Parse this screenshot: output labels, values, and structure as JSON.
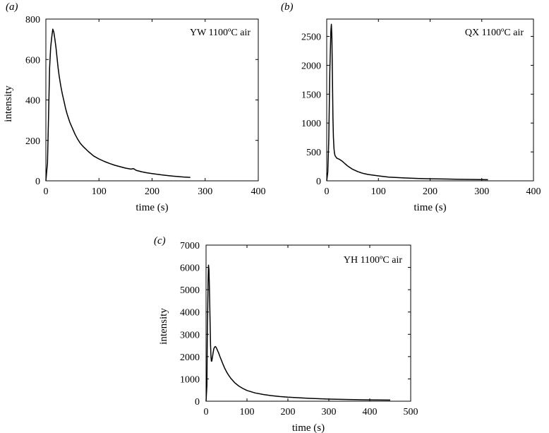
{
  "chart_data": [
    {
      "type": "line",
      "panel_label": "(a)",
      "annotation": "YW 1100ºC air",
      "xlabel": "time (s)",
      "ylabel": "intensity",
      "xlim": [
        0,
        400
      ],
      "ylim": [
        0,
        800
      ],
      "xticks": [
        0,
        100,
        200,
        300,
        400
      ],
      "yticks": [
        0,
        200,
        400,
        600,
        800
      ],
      "series": [
        {
          "x": [
            0,
            3,
            5,
            7,
            9,
            11,
            13,
            15,
            17,
            19,
            21,
            23,
            25,
            28,
            31,
            34,
            37,
            40,
            45,
            50,
            55,
            60,
            65,
            70,
            80,
            90,
            100,
            110,
            120,
            130,
            140,
            150,
            160,
            165,
            170,
            180,
            190,
            200,
            210,
            220,
            230,
            240,
            250,
            260,
            272
          ],
          "y": [
            0,
            90,
            320,
            560,
            660,
            710,
            750,
            735,
            700,
            660,
            610,
            560,
            520,
            470,
            430,
            395,
            360,
            330,
            290,
            260,
            230,
            205,
            185,
            170,
            145,
            123,
            108,
            96,
            86,
            77,
            70,
            63,
            58,
            60,
            52,
            45,
            40,
            36,
            32,
            29,
            26,
            23,
            21,
            19,
            17
          ]
        }
      ]
    },
    {
      "type": "line",
      "panel_label": "(b)",
      "annotation": "QX 1100ºC air",
      "xlabel": "time (s)",
      "ylabel": "",
      "xlim": [
        0,
        400
      ],
      "ylim": [
        0,
        2800
      ],
      "xticks": [
        0,
        100,
        200,
        300,
        400
      ],
      "yticks": [
        0,
        500,
        1000,
        1500,
        2000,
        2500
      ],
      "series": [
        {
          "x": [
            0,
            2,
            4,
            6,
            8,
            9,
            10,
            11,
            12,
            13,
            14,
            15,
            16,
            18,
            20,
            25,
            30,
            35,
            40,
            50,
            60,
            70,
            80,
            100,
            120,
            150,
            175,
            200,
            250,
            300,
            312
          ],
          "y": [
            0,
            150,
            700,
            1900,
            2600,
            2710,
            2500,
            1800,
            1100,
            750,
            560,
            480,
            440,
            410,
            390,
            370,
            340,
            300,
            260,
            200,
            160,
            130,
            110,
            85,
            65,
            50,
            42,
            35,
            28,
            22,
            20
          ]
        }
      ]
    },
    {
      "type": "line",
      "panel_label": "(c)",
      "annotation": "YH 1100ºC air",
      "xlabel": "time (s)",
      "ylabel": "intensity",
      "xlim": [
        0,
        500
      ],
      "ylim": [
        0,
        7000
      ],
      "xticks": [
        0,
        100,
        200,
        300,
        400,
        500
      ],
      "yticks": [
        0,
        1000,
        2000,
        3000,
        4000,
        5000,
        6000,
        7000
      ],
      "series": [
        {
          "x": [
            0,
            2,
            3,
            5,
            6,
            7,
            8,
            9,
            10,
            11,
            12,
            13,
            14,
            15,
            17,
            19,
            21,
            23,
            25,
            28,
            31,
            34,
            37,
            40,
            45,
            50,
            55,
            60,
            70,
            80,
            90,
            100,
            120,
            140,
            160,
            180,
            200,
            250,
            300,
            350,
            400,
            450
          ],
          "y": [
            0,
            700,
            2800,
            5400,
            6100,
            5900,
            5300,
            4400,
            3400,
            2500,
            2000,
            1800,
            1800,
            1900,
            2150,
            2350,
            2430,
            2450,
            2400,
            2280,
            2150,
            2000,
            1860,
            1720,
            1500,
            1320,
            1170,
            1040,
            830,
            680,
            570,
            480,
            370,
            300,
            250,
            210,
            180,
            130,
            95,
            75,
            60,
            50
          ]
        }
      ]
    }
  ]
}
